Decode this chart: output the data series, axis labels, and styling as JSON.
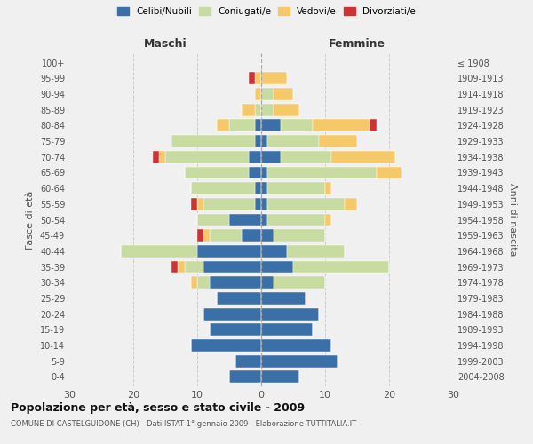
{
  "age_groups": [
    "0-4",
    "5-9",
    "10-14",
    "15-19",
    "20-24",
    "25-29",
    "30-34",
    "35-39",
    "40-44",
    "45-49",
    "50-54",
    "55-59",
    "60-64",
    "65-69",
    "70-74",
    "75-79",
    "80-84",
    "85-89",
    "90-94",
    "95-99",
    "100+"
  ],
  "birth_years": [
    "2004-2008",
    "1999-2003",
    "1994-1998",
    "1989-1993",
    "1984-1988",
    "1979-1983",
    "1974-1978",
    "1969-1973",
    "1964-1968",
    "1959-1963",
    "1954-1958",
    "1949-1953",
    "1944-1948",
    "1939-1943",
    "1934-1938",
    "1929-1933",
    "1924-1928",
    "1919-1923",
    "1914-1918",
    "1909-1913",
    "≤ 1908"
  ],
  "maschi": {
    "celibi": [
      5,
      4,
      11,
      8,
      9,
      7,
      8,
      9,
      10,
      3,
      5,
      1,
      1,
      2,
      2,
      1,
      1,
      0,
      0,
      0,
      0
    ],
    "coniugati": [
      0,
      0,
      0,
      0,
      0,
      0,
      2,
      3,
      12,
      5,
      5,
      8,
      10,
      10,
      13,
      13,
      4,
      1,
      0,
      0,
      0
    ],
    "vedovi": [
      0,
      0,
      0,
      0,
      0,
      0,
      1,
      1,
      0,
      1,
      0,
      1,
      0,
      0,
      1,
      0,
      2,
      2,
      1,
      1,
      0
    ],
    "divorziati": [
      0,
      0,
      0,
      0,
      0,
      0,
      0,
      1,
      0,
      1,
      0,
      1,
      0,
      0,
      1,
      0,
      0,
      0,
      0,
      1,
      0
    ]
  },
  "femmine": {
    "nubili": [
      6,
      12,
      11,
      8,
      9,
      7,
      2,
      5,
      4,
      2,
      1,
      1,
      1,
      1,
      3,
      1,
      3,
      0,
      0,
      0,
      0
    ],
    "coniugate": [
      0,
      0,
      0,
      0,
      0,
      0,
      8,
      15,
      9,
      8,
      9,
      12,
      9,
      17,
      8,
      8,
      5,
      2,
      2,
      0,
      0
    ],
    "vedove": [
      0,
      0,
      0,
      0,
      0,
      0,
      0,
      0,
      0,
      0,
      1,
      2,
      1,
      4,
      10,
      6,
      9,
      4,
      3,
      4,
      0
    ],
    "divorziate": [
      0,
      0,
      0,
      0,
      0,
      0,
      0,
      0,
      0,
      0,
      0,
      0,
      0,
      0,
      0,
      0,
      1,
      0,
      0,
      0,
      0
    ]
  },
  "colors": {
    "celibi": "#3a6fa8",
    "coniugati": "#c8dba0",
    "vedovi": "#f5c96a",
    "divorziati": "#cc3333"
  },
  "xlim": 30,
  "title": "Popolazione per età, sesso e stato civile - 2009",
  "subtitle": "COMUNE DI CASTELGUIDONE (CH) - Dati ISTAT 1° gennaio 2009 - Elaborazione TUTTITALIA.IT",
  "ylabel_left": "Fasce di età",
  "ylabel_right": "Anni di nascita",
  "xlabel_left": "Maschi",
  "xlabel_right": "Femmine",
  "bg_color": "#f0f0f0",
  "grid_color": "#cccccc"
}
